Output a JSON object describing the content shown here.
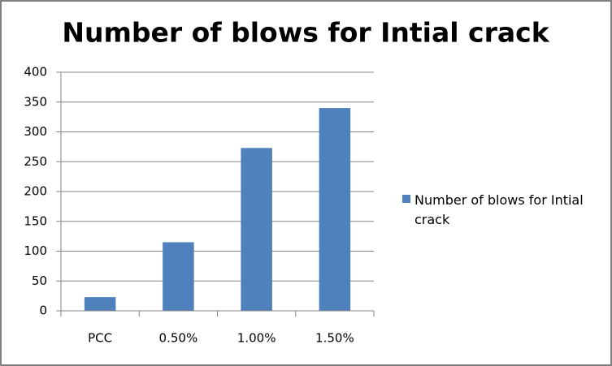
{
  "chart_data": {
    "type": "bar",
    "title": "Number of blows for Intial crack",
    "categories": [
      "PCC",
      "0.50%",
      "1.00%",
      "1.50%"
    ],
    "series": [
      {
        "name": "Number of blows for Intial crack",
        "color": "#4f81bd",
        "values": [
          23,
          115,
          273,
          340
        ]
      }
    ],
    "ylim": [
      0,
      400
    ],
    "yticks": [
      0,
      50,
      100,
      150,
      200,
      250,
      300,
      350,
      400
    ],
    "grid": true,
    "legend": "right"
  }
}
